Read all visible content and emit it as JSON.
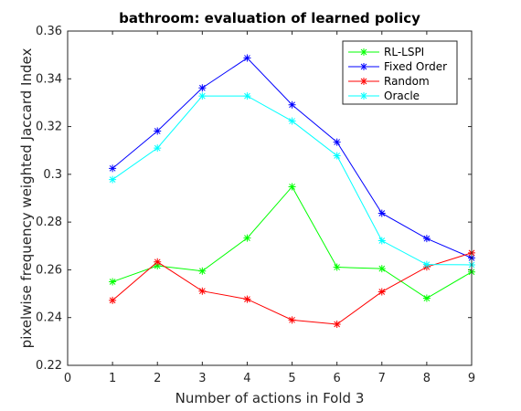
{
  "chart_data": {
    "type": "line",
    "title": "bathroom: evaluation of learned policy",
    "xlabel": "Number of actions in Fold 3",
    "ylabel": "pixelwise frequency weighted Jaccard Index",
    "xlim": [
      0,
      9
    ],
    "ylim": [
      0.22,
      0.36
    ],
    "xticks": [
      0,
      1,
      2,
      3,
      4,
      5,
      6,
      7,
      8,
      9
    ],
    "yticks": [
      0.22,
      0.24,
      0.26,
      0.28,
      0.3,
      0.32,
      0.34,
      0.36
    ],
    "ytick_labels": [
      "0.22",
      "0.24",
      "0.26",
      "0.28",
      "0.3",
      "0.32",
      "0.34",
      "0.36"
    ],
    "grid": false,
    "legend_position": "top-right",
    "x": [
      1,
      2,
      3,
      4,
      5,
      6,
      7,
      8,
      9
    ],
    "series": [
      {
        "name": "RL-LSPI",
        "color": "#00ff00",
        "values": [
          0.255,
          0.2617,
          0.2595,
          0.2733,
          0.2948,
          0.2611,
          0.2605,
          0.2481,
          0.2591
        ]
      },
      {
        "name": "Fixed Order",
        "color": "#0000ff",
        "values": [
          0.3025,
          0.3181,
          0.3362,
          0.3487,
          0.3291,
          0.3135,
          0.2837,
          0.2731,
          0.265
        ]
      },
      {
        "name": "Random",
        "color": "#ff0000",
        "values": [
          0.2472,
          0.2633,
          0.2511,
          0.2477,
          0.239,
          0.2372,
          0.2508,
          0.2612,
          0.2671
        ]
      },
      {
        "name": "Oracle",
        "color": "#00ffff",
        "values": [
          0.2978,
          0.311,
          0.3328,
          0.3328,
          0.3223,
          0.3078,
          0.2722,
          0.2622,
          0.2621
        ]
      }
    ]
  }
}
